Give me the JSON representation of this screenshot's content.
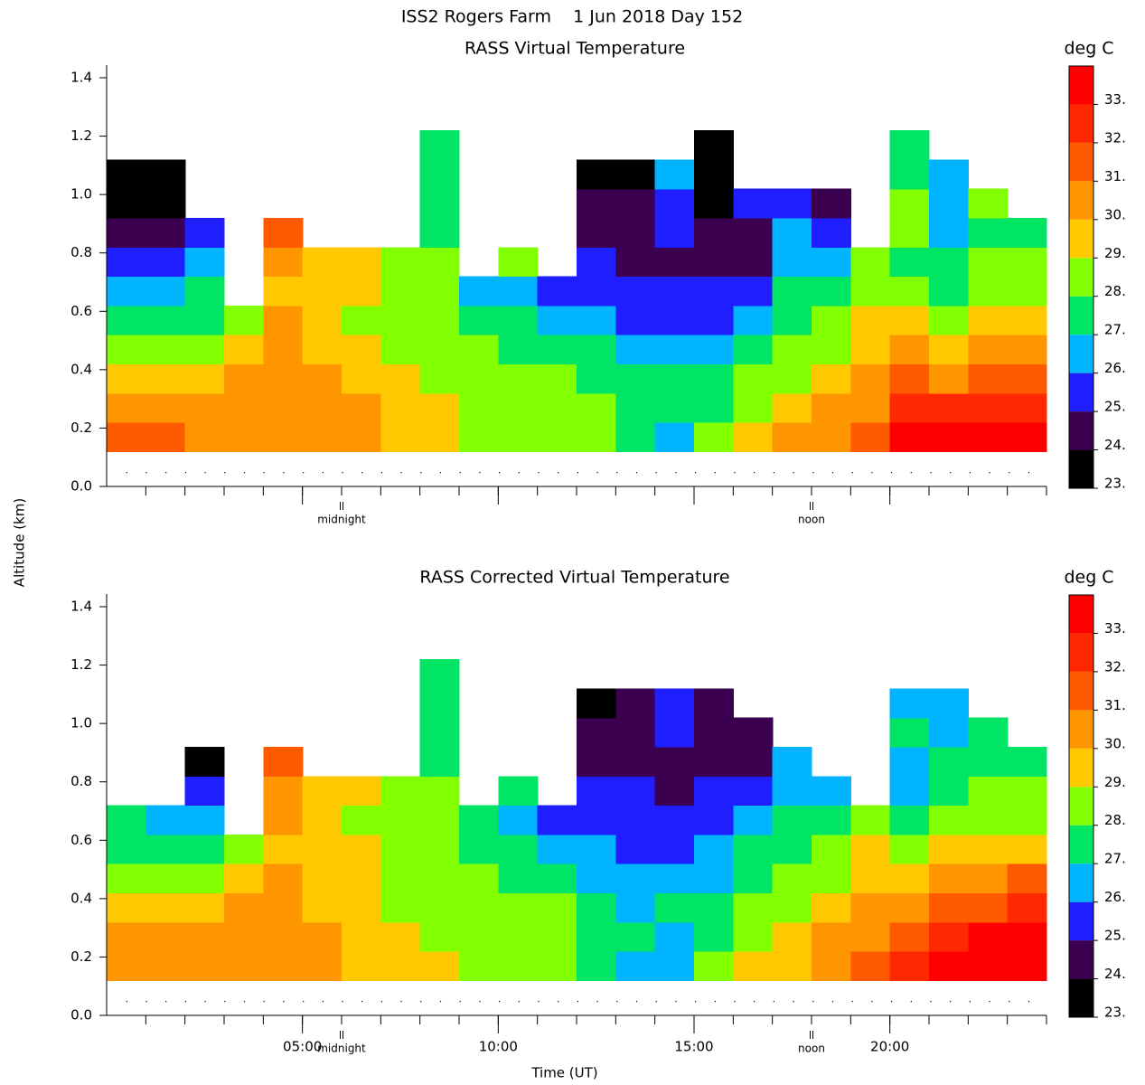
{
  "title": "ISS2 Rogers Farm    1 Jun 2018 Day 152",
  "ylabel": "Altitude (km)",
  "chart_data": [
    {
      "type": "contour",
      "title": "RASS Virtual Temperature",
      "zlabel": "deg C",
      "xlim": [
        0,
        24
      ],
      "xticks": [
        5,
        10,
        15,
        20
      ],
      "show_xtick_labels": false,
      "ylim": [
        0,
        1.4
      ],
      "yticks": [
        {
          "value": 0,
          "label": "0.0"
        },
        {
          "value": 0.2,
          "label": "0.2"
        },
        {
          "value": 0.4,
          "label": "0.4"
        },
        {
          "value": 0.6,
          "label": "0.6"
        },
        {
          "value": 0.8,
          "label": "0.8"
        },
        {
          "value": 1,
          "label": "1.0"
        },
        {
          "value": 1.2,
          "label": "1.2"
        },
        {
          "value": 1.4,
          "label": "1.4"
        }
      ],
      "annotations": [
        {
          "x": 6,
          "text": "midnight"
        },
        {
          "x": 18,
          "text": "noon"
        }
      ],
      "zlim": [
        23,
        34
      ],
      "zticks": [
        {
          "value": 23,
          "label": "23."
        },
        {
          "value": 24,
          "label": "24."
        },
        {
          "value": 25,
          "label": "25."
        },
        {
          "value": 26,
          "label": "26."
        },
        {
          "value": 27,
          "label": "27."
        },
        {
          "value": 28,
          "label": "28."
        },
        {
          "value": 29,
          "label": "29."
        },
        {
          "value": 30,
          "label": "30."
        },
        {
          "value": 31,
          "label": "31."
        },
        {
          "value": 32,
          "label": "32."
        },
        {
          "value": 33,
          "label": "33."
        }
      ],
      "colors": [
        "#000000",
        "#3c0050",
        "#1e1eff",
        "#00b4ff",
        "#00e664",
        "#82ff00",
        "#ffc800",
        "#ff9600",
        "#ff5a00",
        "#ff2800",
        "#ff0000"
      ],
      "x": [
        0.5,
        1.5,
        2.5,
        3.5,
        4.5,
        5.5,
        6.5,
        7.5,
        8.5,
        9.5,
        10.5,
        11.5,
        12.5,
        13.5,
        14.5,
        15.5,
        16.5,
        17.5,
        18.5,
        19.5,
        20.5,
        21.5,
        22.5,
        23.5
      ],
      "altitudes": [
        0.17,
        0.27,
        0.37,
        0.47,
        0.57,
        0.67,
        0.77,
        0.87,
        0.97,
        1.07,
        1.17
      ],
      "z": [
        [
          31,
          30.5,
          29.5,
          28.5,
          27.5,
          26.5,
          25.5,
          24.5,
          23.5,
          23.5,
          null
        ],
        [
          31,
          30.5,
          29.5,
          28.5,
          27.5,
          26.5,
          25.5,
          24.5,
          23.5,
          23.5,
          null
        ],
        [
          30.5,
          30,
          29.5,
          28.5,
          27.5,
          27.5,
          26.5,
          25.5,
          null,
          null,
          null
        ],
        [
          30.5,
          30.5,
          30.5,
          29.5,
          28.5,
          null,
          null,
          null,
          null,
          null,
          null
        ],
        [
          30.5,
          30.5,
          30.5,
          30.5,
          30.5,
          29.5,
          30.5,
          31.5,
          null,
          null,
          null
        ],
        [
          30.5,
          30.5,
          30.5,
          29.5,
          29.5,
          29.5,
          29.5,
          null,
          null,
          null,
          null
        ],
        [
          30.5,
          30.5,
          29.5,
          29.5,
          28.5,
          29.5,
          29.5,
          null,
          null,
          null,
          null
        ],
        [
          29.5,
          29.5,
          29.5,
          28.5,
          28.5,
          28.5,
          28.5,
          null,
          null,
          null,
          null
        ],
        [
          29.5,
          29.5,
          28.5,
          28.5,
          28.5,
          28.5,
          28.5,
          27.5,
          27.5,
          27.5,
          27.5
        ],
        [
          28.5,
          28.5,
          28.5,
          28.5,
          27.5,
          26.5,
          null,
          null,
          null,
          null,
          null
        ],
        [
          28.5,
          28.5,
          28.5,
          27.5,
          27.5,
          26.5,
          28.5,
          null,
          null,
          null,
          null
        ],
        [
          28.5,
          28.5,
          28.5,
          27.5,
          26.5,
          25.5,
          null,
          null,
          null,
          null,
          null
        ],
        [
          28.5,
          28.5,
          27.5,
          27.5,
          26.5,
          25.5,
          25.5,
          24.5,
          24.5,
          23.5,
          null
        ],
        [
          27.5,
          27.5,
          27.5,
          26.5,
          25.5,
          25.5,
          24.5,
          24.5,
          24.5,
          23.5,
          null
        ],
        [
          26.5,
          27.5,
          27.5,
          26.5,
          25.5,
          25.5,
          24.5,
          25.5,
          25.5,
          26.5,
          null
        ],
        [
          28.5,
          27.5,
          27.5,
          26.5,
          25.5,
          25.5,
          24.5,
          24.5,
          23.5,
          23.5,
          23.5
        ],
        [
          29.5,
          28.5,
          28.5,
          27.5,
          26.5,
          25.5,
          24.5,
          24.5,
          25.5,
          null,
          null
        ],
        [
          30.5,
          29.5,
          28.5,
          28.5,
          27.5,
          27.5,
          26.5,
          26.5,
          25.5,
          null,
          null
        ],
        [
          30.5,
          30.5,
          29.5,
          28.5,
          28.5,
          27.5,
          26.5,
          25.5,
          24.5,
          null,
          null
        ],
        [
          31.5,
          30.5,
          30.5,
          29.5,
          29.5,
          28.5,
          28.5,
          null,
          null,
          null,
          null
        ],
        [
          33.5,
          32.5,
          31.5,
          30.5,
          29.5,
          28.5,
          27.5,
          28.5,
          28.5,
          27.5,
          27.5
        ],
        [
          33.5,
          32.5,
          30.5,
          29.5,
          28.5,
          27.5,
          27.5,
          26.5,
          26.5,
          26.5,
          null
        ],
        [
          33.5,
          32.5,
          31.5,
          30.5,
          29.5,
          28.5,
          28.5,
          27.5,
          28.5,
          null,
          null
        ],
        [
          33.5,
          32.5,
          31.5,
          30.5,
          29.5,
          28.5,
          28.5,
          27.5,
          null,
          null,
          null
        ]
      ]
    },
    {
      "type": "contour",
      "title": "RASS Corrected Virtual Temperature",
      "zlabel": "deg C",
      "xlabel": "Time (UT)",
      "xlim": [
        0,
        24
      ],
      "xticks": [
        {
          "value": 5,
          "label": "05:00"
        },
        {
          "value": 10,
          "label": "10:00"
        },
        {
          "value": 15,
          "label": "15:00"
        },
        {
          "value": 20,
          "label": "20:00"
        }
      ],
      "show_xtick_labels": true,
      "ylim": [
        0,
        1.4
      ],
      "yticks": [
        {
          "value": 0,
          "label": "0.0"
        },
        {
          "value": 0.2,
          "label": "0.2"
        },
        {
          "value": 0.4,
          "label": "0.4"
        },
        {
          "value": 0.6,
          "label": "0.6"
        },
        {
          "value": 0.8,
          "label": "0.8"
        },
        {
          "value": 1,
          "label": "1.0"
        },
        {
          "value": 1.2,
          "label": "1.2"
        },
        {
          "value": 1.4,
          "label": "1.4"
        }
      ],
      "annotations": [
        {
          "x": 6,
          "text": "midnight"
        },
        {
          "x": 18,
          "text": "noon"
        }
      ],
      "zlim": [
        23,
        34
      ],
      "zticks": [
        {
          "value": 23,
          "label": "23."
        },
        {
          "value": 24,
          "label": "24."
        },
        {
          "value": 25,
          "label": "25."
        },
        {
          "value": 26,
          "label": "26."
        },
        {
          "value": 27,
          "label": "27."
        },
        {
          "value": 28,
          "label": "28."
        },
        {
          "value": 29,
          "label": "29."
        },
        {
          "value": 30,
          "label": "30."
        },
        {
          "value": 31,
          "label": "31."
        },
        {
          "value": 32,
          "label": "32."
        },
        {
          "value": 33,
          "label": "33."
        }
      ],
      "colors": [
        "#000000",
        "#3c0050",
        "#1e1eff",
        "#00b4ff",
        "#00e664",
        "#82ff00",
        "#ffc800",
        "#ff9600",
        "#ff5a00",
        "#ff2800",
        "#ff0000"
      ],
      "x": [
        0.5,
        1.5,
        2.5,
        3.5,
        4.5,
        5.5,
        6.5,
        7.5,
        8.5,
        9.5,
        10.5,
        11.5,
        12.5,
        13.5,
        14.5,
        15.5,
        16.5,
        17.5,
        18.5,
        19.5,
        20.5,
        21.5,
        22.5,
        23.5
      ],
      "altitudes": [
        0.17,
        0.27,
        0.37,
        0.47,
        0.57,
        0.67,
        0.77,
        0.87,
        0.97,
        1.07,
        1.17
      ],
      "z": [
        [
          30.5,
          30.5,
          29.5,
          28.5,
          27.5,
          27.5,
          null,
          null,
          null,
          null,
          null
        ],
        [
          30.5,
          30.5,
          29.5,
          28.5,
          27.5,
          26.5,
          null,
          null,
          null,
          null,
          null
        ],
        [
          30.5,
          30.5,
          29.5,
          28.5,
          27.5,
          26.5,
          25.5,
          23.5,
          null,
          null,
          null
        ],
        [
          30.5,
          30.5,
          30.5,
          29.5,
          28.5,
          null,
          null,
          null,
          null,
          null,
          null
        ],
        [
          30.5,
          30.5,
          30.5,
          30.5,
          29.5,
          30.5,
          30.5,
          31.5,
          null,
          null,
          null
        ],
        [
          30.5,
          30.5,
          29.5,
          29.5,
          29.5,
          29.5,
          29.5,
          null,
          null,
          null,
          null
        ],
        [
          29.5,
          29.5,
          29.5,
          29.5,
          29.5,
          28.5,
          29.5,
          null,
          null,
          null,
          null
        ],
        [
          29.5,
          29.5,
          28.5,
          28.5,
          28.5,
          28.5,
          28.5,
          null,
          null,
          null,
          null
        ],
        [
          29.5,
          28.5,
          28.5,
          28.5,
          28.5,
          28.5,
          28.5,
          27.5,
          27.5,
          27.5,
          27.5
        ],
        [
          28.5,
          28.5,
          28.5,
          28.5,
          27.5,
          27.5,
          null,
          null,
          null,
          null,
          null
        ],
        [
          28.5,
          28.5,
          28.5,
          27.5,
          27.5,
          26.5,
          27.5,
          null,
          null,
          null,
          null
        ],
        [
          28.5,
          28.5,
          28.5,
          27.5,
          26.5,
          25.5,
          null,
          null,
          null,
          null,
          null
        ],
        [
          27.5,
          27.5,
          27.5,
          26.5,
          26.5,
          25.5,
          25.5,
          24.5,
          24.5,
          23.5,
          null
        ],
        [
          26.5,
          27.5,
          26.5,
          26.5,
          25.5,
          25.5,
          25.5,
          24.5,
          24.5,
          24.5,
          null
        ],
        [
          26.5,
          26.5,
          27.5,
          26.5,
          25.5,
          25.5,
          24.5,
          24.5,
          25.5,
          25.5,
          null
        ],
        [
          28.5,
          27.5,
          27.5,
          26.5,
          26.5,
          25.5,
          25.5,
          24.5,
          24.5,
          24.5,
          null
        ],
        [
          29.5,
          28.5,
          28.5,
          27.5,
          27.5,
          26.5,
          25.5,
          24.5,
          24.5,
          null,
          null
        ],
        [
          29.5,
          29.5,
          28.5,
          28.5,
          27.5,
          27.5,
          26.5,
          26.5,
          null,
          null,
          null
        ],
        [
          30.5,
          30.5,
          29.5,
          28.5,
          28.5,
          27.5,
          26.5,
          null,
          null,
          null,
          null
        ],
        [
          31.5,
          30.5,
          30.5,
          29.5,
          29.5,
          28.5,
          null,
          null,
          null,
          null,
          null
        ],
        [
          32.5,
          31.5,
          30.5,
          29.5,
          28.5,
          27.5,
          26.5,
          26.5,
          27.5,
          26.5,
          null
        ],
        [
          33.5,
          32.5,
          31.5,
          30.5,
          29.5,
          28.5,
          27.5,
          27.5,
          26.5,
          26.5,
          null
        ],
        [
          33.5,
          33.5,
          31.5,
          30.5,
          29.5,
          28.5,
          28.5,
          27.5,
          27.5,
          null,
          null
        ],
        [
          33.5,
          33.5,
          32.5,
          31.5,
          29.5,
          28.5,
          28.5,
          27.5,
          null,
          null,
          null
        ]
      ]
    }
  ]
}
